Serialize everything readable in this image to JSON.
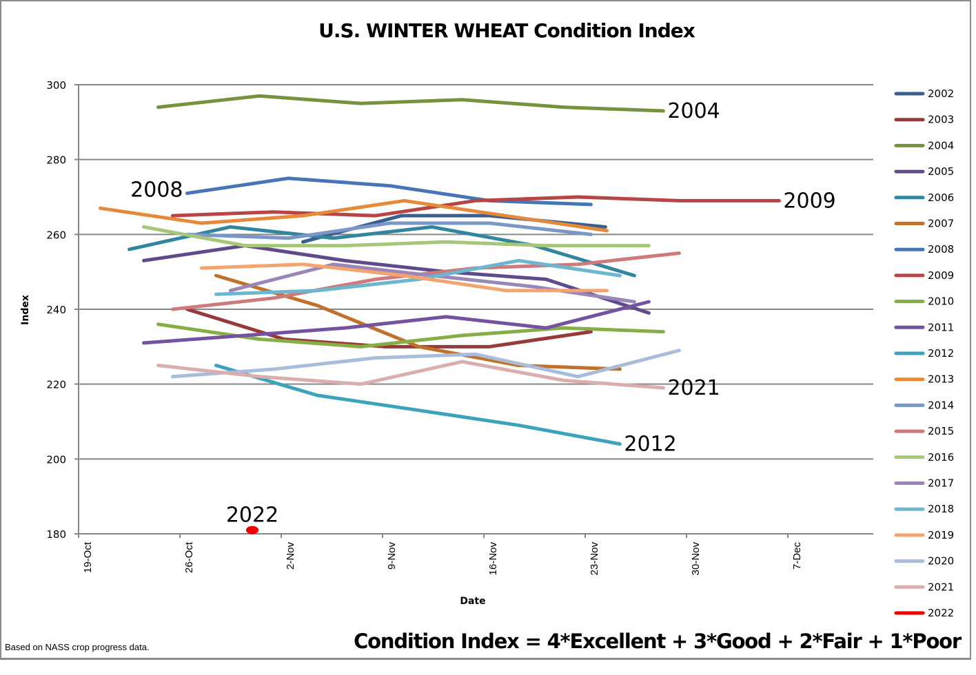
{
  "chart_data": {
    "type": "line",
    "title": "U.S. WINTER WHEAT Condition Index",
    "xlabel": "Date",
    "ylabel": "Index",
    "ylim": [
      180,
      300
    ],
    "yticks": [
      "300",
      "280",
      "260",
      "240",
      "220",
      "200",
      "180"
    ],
    "ytick_values": [
      300,
      280,
      260,
      240,
      220,
      200,
      180
    ],
    "xticks": [
      "19-Oct",
      "26-Oct",
      "2-Nov",
      "9-Nov",
      "16-Nov",
      "23-Nov",
      "30-Nov",
      "7-Dec"
    ],
    "x_units": "days after 19-Oct",
    "xlim": [
      0,
      55
    ],
    "grid": "horizontal",
    "legend_position": "right",
    "series": [
      {
        "name": "2002",
        "color": "#3a5f8f",
        "x": [
          15.5,
          22.3,
          28.4,
          36.4
        ],
        "values": [
          258,
          265,
          265,
          262
        ]
      },
      {
        "name": "2003",
        "color": "#993a3a",
        "x": [
          7.5,
          14.2,
          21.2,
          28.4,
          35.4
        ],
        "values": [
          240,
          232,
          230,
          230,
          234
        ]
      },
      {
        "name": "2004",
        "color": "#76923c",
        "x": [
          5.5,
          12.5,
          19.5,
          26.5,
          33.5,
          40.4
        ],
        "values": [
          294,
          297,
          295,
          296,
          294,
          293
        ]
      },
      {
        "name": "2005",
        "color": "#5f4b8b",
        "x": [
          4.5,
          11.5,
          18.4,
          25.4,
          32.3,
          39.4
        ],
        "values": [
          253,
          257,
          253,
          250,
          248,
          239
        ]
      },
      {
        "name": "2006",
        "color": "#31859c",
        "x": [
          3.5,
          10.5,
          17.6,
          24.4,
          31.5,
          38.4
        ],
        "values": [
          256,
          262,
          259,
          262,
          257,
          249
        ]
      },
      {
        "name": "2007",
        "color": "#c0712c",
        "x": [
          9.5,
          16.5,
          23.5,
          30.4,
          37.4
        ],
        "values": [
          249,
          241,
          230,
          225,
          224
        ]
      },
      {
        "name": "2008",
        "color": "#4676b4",
        "x": [
          7.5,
          14.5,
          21.5,
          28.4,
          35.4
        ],
        "values": [
          271,
          275,
          273,
          269,
          268
        ]
      },
      {
        "name": "2009",
        "color": "#b84545",
        "x": [
          6.5,
          13.5,
          20.5,
          27.4,
          34.5,
          41.5,
          48.4
        ],
        "values": [
          265,
          266,
          265,
          269,
          270,
          269,
          269
        ]
      },
      {
        "name": "2010",
        "color": "#87ad46",
        "x": [
          5.5,
          12.5,
          19.5,
          26.5,
          33.5,
          40.4
        ],
        "values": [
          236,
          232,
          230,
          233,
          235,
          234
        ]
      },
      {
        "name": "2011",
        "color": "#7352a0",
        "x": [
          4.5,
          11.5,
          18.4,
          25.4,
          32.3,
          39.4
        ],
        "values": [
          231,
          233,
          235,
          238,
          235,
          242
        ]
      },
      {
        "name": "2012",
        "color": "#3ca3bd",
        "x": [
          9.5,
          16.5,
          23.5,
          30.4,
          37.4
        ],
        "values": [
          225,
          217,
          213,
          209,
          204
        ]
      },
      {
        "name": "2013",
        "color": "#e58a3a",
        "x": [
          1.5,
          8.5,
          15.5,
          22.5,
          29.5,
          36.5
        ],
        "values": [
          267,
          263,
          265,
          269,
          265,
          261
        ]
      },
      {
        "name": "2014",
        "color": "#7a97c8",
        "x": [
          7.5,
          14.5,
          21.5,
          28.4,
          35.4
        ],
        "values": [
          260,
          259,
          263,
          263,
          260
        ]
      },
      {
        "name": "2015",
        "color": "#cc7a7a",
        "x": [
          6.5,
          13.5,
          20.5,
          27.4,
          34.5,
          41.5
        ],
        "values": [
          240,
          243,
          248,
          251,
          252,
          255
        ]
      },
      {
        "name": "2016",
        "color": "#a6c77a",
        "x": [
          4.5,
          11.5,
          18.4,
          25.4,
          32.3,
          39.4
        ],
        "values": [
          262,
          257,
          257,
          258,
          257,
          257
        ]
      },
      {
        "name": "2017",
        "color": "#9a86b8",
        "x": [
          10.5,
          17.6,
          24.4,
          31.5,
          38.4
        ],
        "values": [
          245,
          252,
          249,
          246,
          242
        ]
      },
      {
        "name": "2018",
        "color": "#6db6d0",
        "x": [
          9.5,
          16.5,
          23.5,
          30.4,
          37.4
        ],
        "values": [
          244,
          245,
          248,
          253,
          249
        ]
      },
      {
        "name": "2019",
        "color": "#f4a46e",
        "x": [
          8.5,
          15.5,
          22.5,
          29.5,
          36.5
        ],
        "values": [
          251,
          252,
          249,
          245,
          245
        ]
      },
      {
        "name": "2020",
        "color": "#a9bcd9",
        "x": [
          6.5,
          13.5,
          20.5,
          27.4,
          34.5,
          41.5
        ],
        "values": [
          222,
          224,
          227,
          228,
          222,
          229
        ]
      },
      {
        "name": "2021",
        "color": "#dbaeae",
        "x": [
          5.5,
          12.5,
          19.5,
          26.5,
          33.5,
          40.4
        ],
        "values": [
          225,
          222,
          220,
          226,
          221,
          219
        ]
      },
      {
        "name": "2022",
        "color": "#ee0000",
        "x": [
          12.0
        ],
        "values": [
          181
        ]
      }
    ],
    "annotations": [
      {
        "text": "2004",
        "series": "2004"
      },
      {
        "text": "2008",
        "series": "2008"
      },
      {
        "text": "2009",
        "series": "2009"
      },
      {
        "text": "2021",
        "series": "2021"
      },
      {
        "text": "2012",
        "series": "2012"
      },
      {
        "text": "2022",
        "series": "2022"
      }
    ]
  },
  "footnote": "Based on NASS crop progress data.",
  "formula": "Condition Index = 4*Excellent + 3*Good + 2*Fair + 1*Poor"
}
